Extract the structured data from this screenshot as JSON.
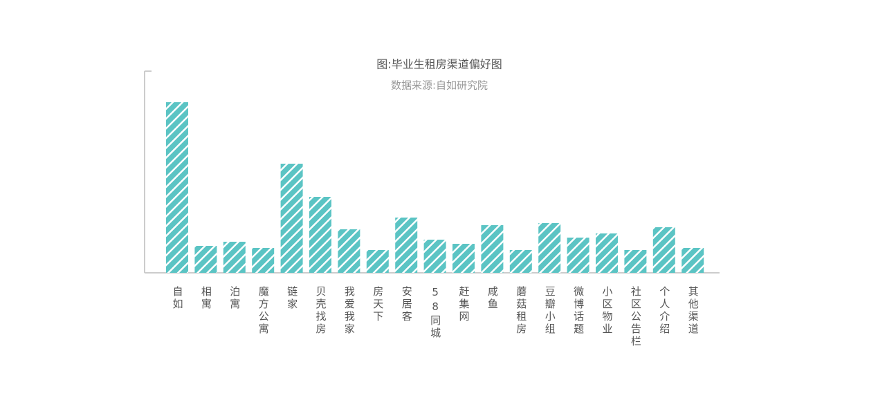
{
  "chart_data": {
    "type": "bar",
    "title": "图:毕业生租房渠道偏好图",
    "subtitle": "数据来源:自如研究院",
    "categories": [
      "自如",
      "相寓",
      "泊寓",
      "魔方公寓",
      "链家",
      "贝壳找房",
      "我爱我家",
      "房天下",
      "安居客",
      "58同城",
      "赶集网",
      "咸鱼",
      "蘑菇租房",
      "豆瓣小组",
      "微博话题",
      "小区物业",
      "社区公告栏",
      "个人介绍",
      "其他渠道"
    ],
    "values": [
      247,
      39,
      45,
      36,
      158,
      110,
      63,
      33,
      80,
      48,
      42,
      69,
      33,
      72,
      51,
      57,
      33,
      66,
      36
    ],
    "color": "#5bc4c4",
    "ylim": [
      0,
      292
    ]
  }
}
